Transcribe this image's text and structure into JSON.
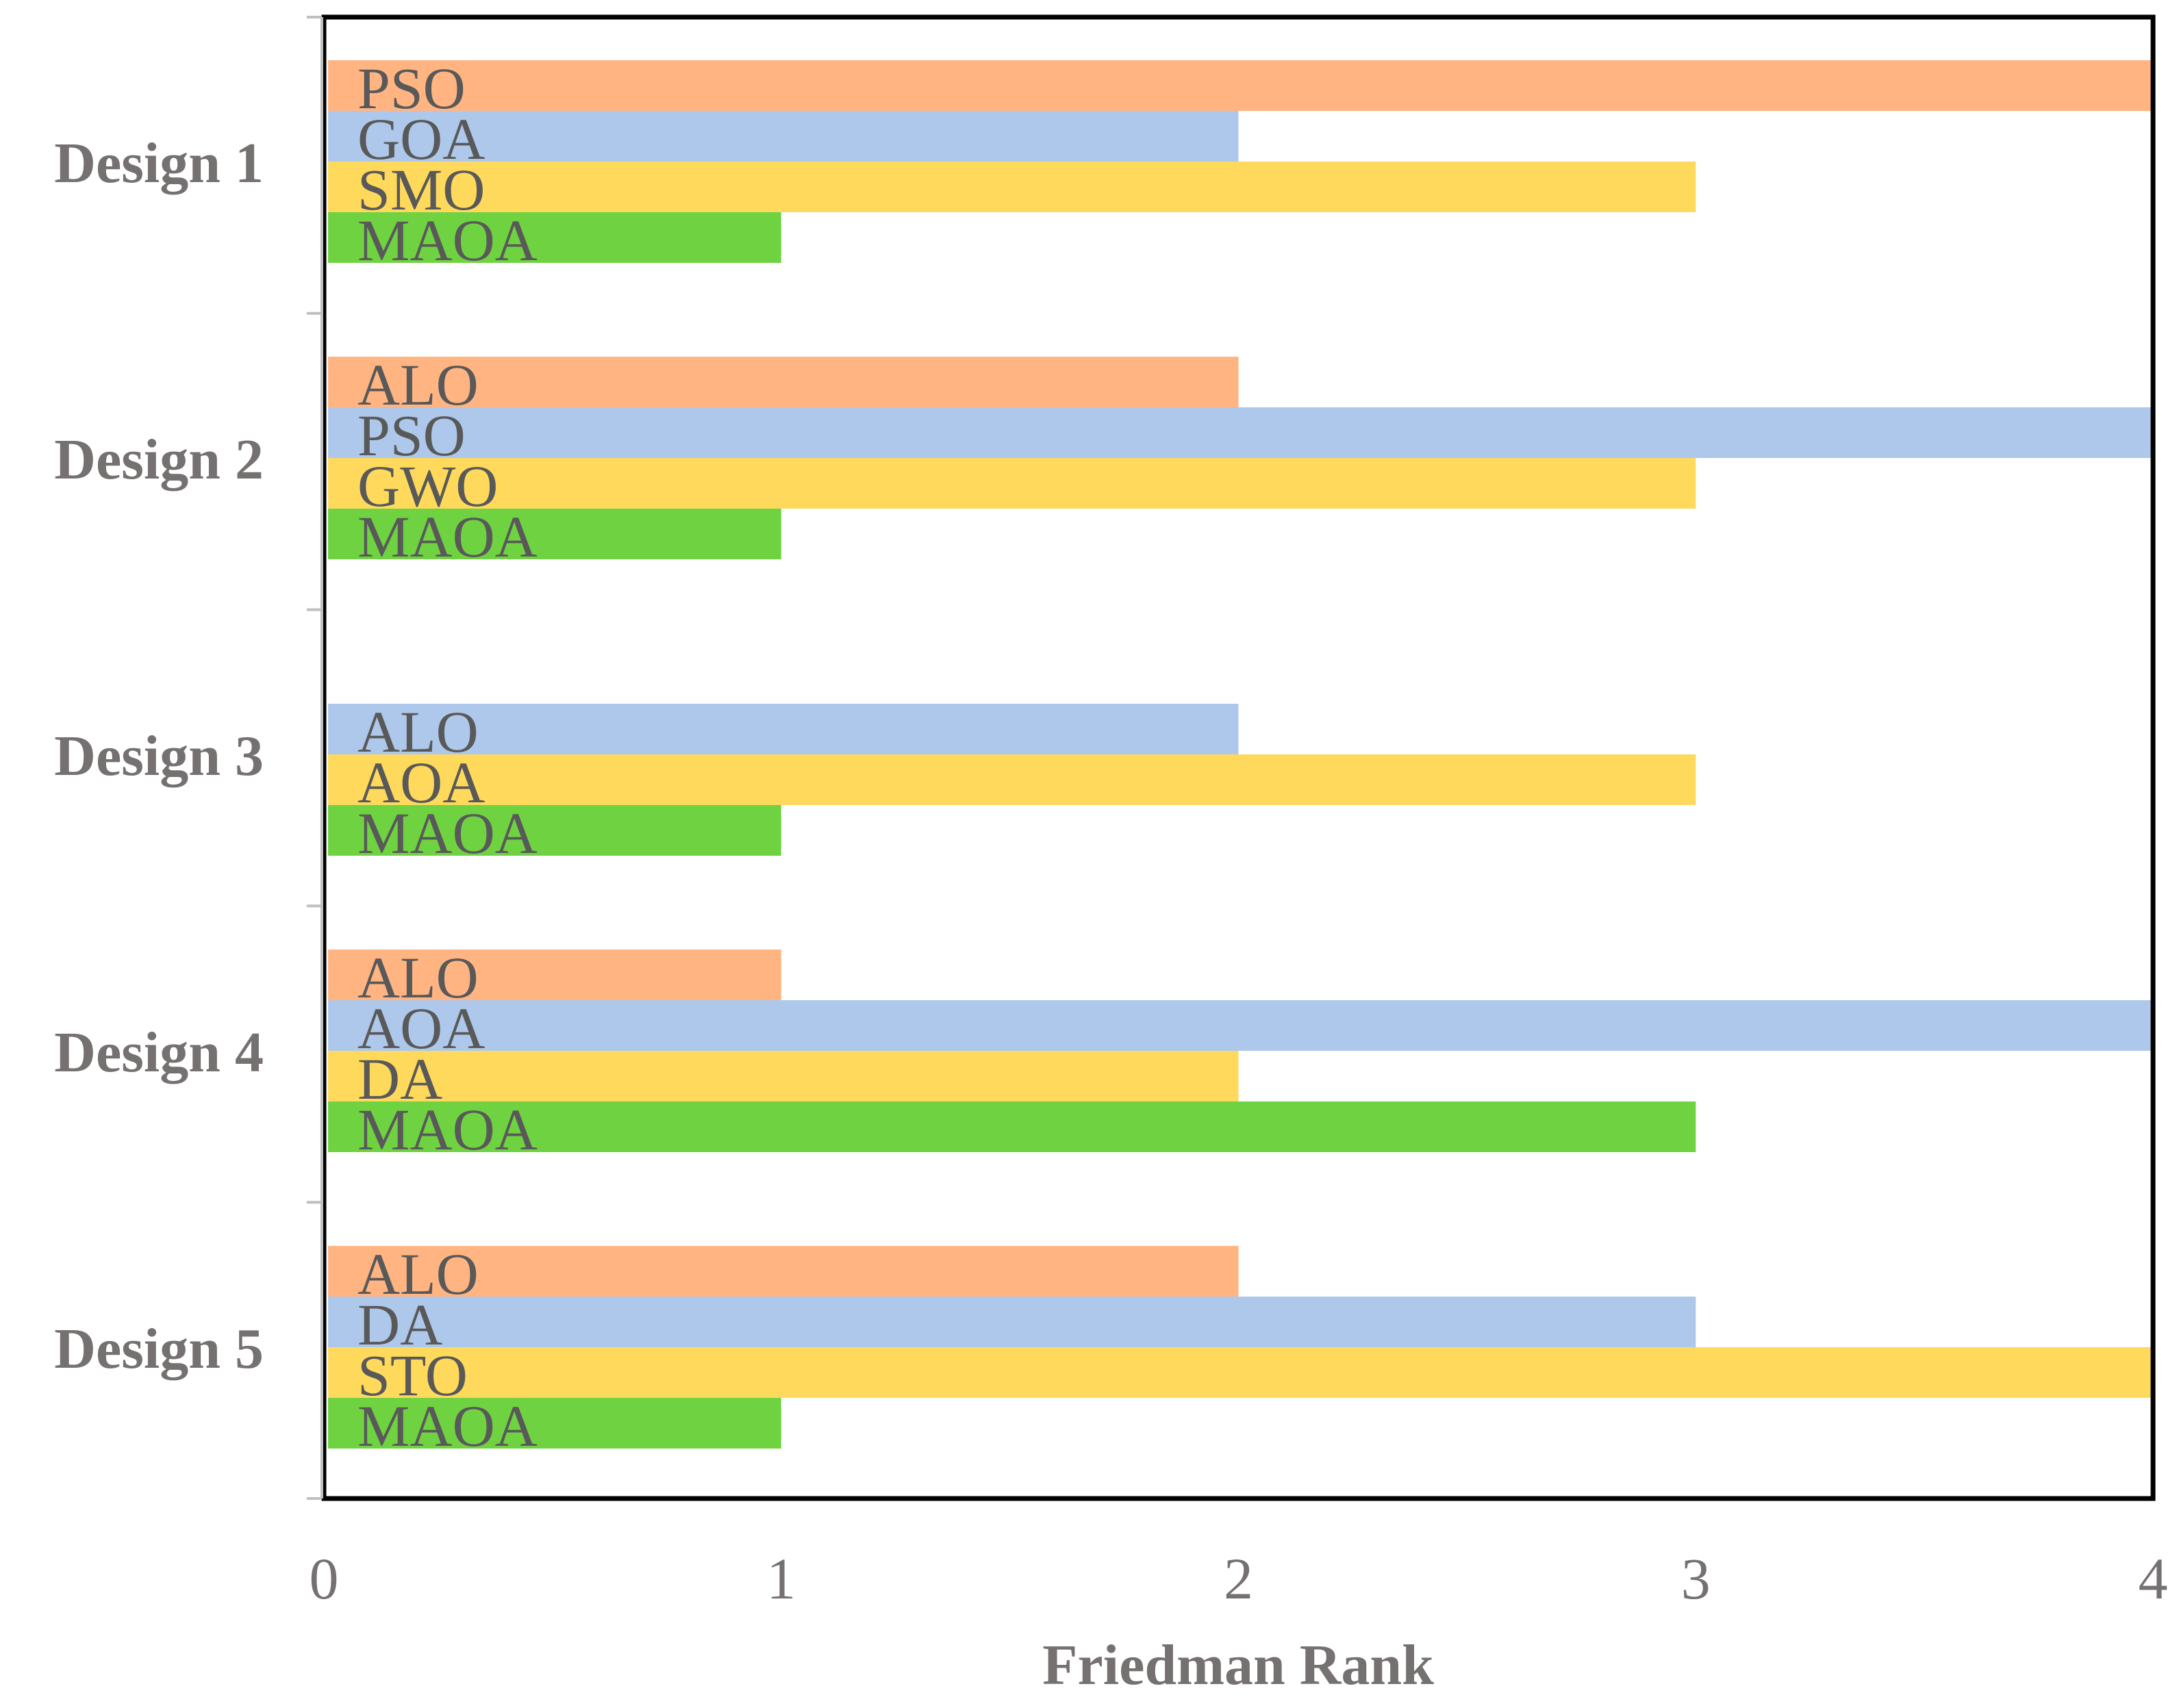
{
  "chart_data": {
    "type": "bar",
    "orientation": "horizontal",
    "title": "",
    "xlabel": "Friedman Rank",
    "ylabel": "",
    "xlim": [
      0,
      4
    ],
    "x_ticks": [
      "0",
      "1",
      "2",
      "3",
      "4"
    ],
    "grid": false,
    "legend": "none",
    "colors": {
      "slot1": "#FFB482",
      "slot2": "#ADC8EA",
      "slot3": "#FFD95C",
      "slot4": "#6FD341"
    },
    "groups": [
      {
        "category": "Design 1",
        "bars": [
          {
            "label": "PSO",
            "value": 4,
            "slot": 1
          },
          {
            "label": "GOA",
            "value": 2,
            "slot": 2
          },
          {
            "label": "SMO",
            "value": 3,
            "slot": 3
          },
          {
            "label": "MAOA",
            "value": 1,
            "slot": 4
          }
        ]
      },
      {
        "category": "Design 2",
        "bars": [
          {
            "label": "ALO",
            "value": 2,
            "slot": 1
          },
          {
            "label": "PSO",
            "value": 4,
            "slot": 2
          },
          {
            "label": "GWO",
            "value": 3,
            "slot": 3
          },
          {
            "label": "MAOA",
            "value": 1,
            "slot": 4
          }
        ]
      },
      {
        "category": "Design 3",
        "bars": [
          {
            "label": "ALO",
            "value": 2,
            "slot": 2
          },
          {
            "label": "AOA",
            "value": 3,
            "slot": 3
          },
          {
            "label": "MAOA",
            "value": 1,
            "slot": 4
          }
        ]
      },
      {
        "category": "Design 4",
        "bars": [
          {
            "label": "ALO",
            "value": 1,
            "slot": 1
          },
          {
            "label": "AOA",
            "value": 4,
            "slot": 2
          },
          {
            "label": "DA",
            "value": 2,
            "slot": 3
          },
          {
            "label": "MAOA",
            "value": 3,
            "slot": 4
          }
        ]
      },
      {
        "category": "Design 5",
        "bars": [
          {
            "label": "ALO",
            "value": 2,
            "slot": 1
          },
          {
            "label": "DA",
            "value": 3,
            "slot": 2
          },
          {
            "label": "STO",
            "value": 4,
            "slot": 3
          },
          {
            "label": "MAOA",
            "value": 1,
            "slot": 4
          }
        ]
      }
    ]
  }
}
